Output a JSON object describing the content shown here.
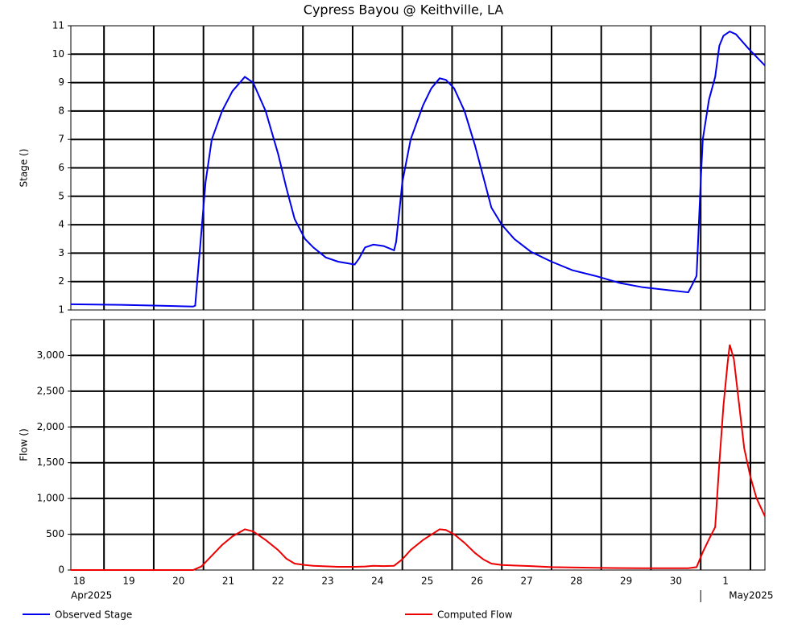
{
  "chart_data": [
    {
      "type": "line",
      "title": "Cypress Bayou @ Keithville, LA",
      "ylabel": "Stage ()",
      "x": [
        "2025-04-18T08:00",
        "2025-04-19T08:00",
        "2025-04-20T04:00",
        "2025-04-20T19:00",
        "2025-04-20T20:00",
        "2025-04-21T01:00",
        "2025-04-21T04:00",
        "2025-04-21T09:00",
        "2025-04-21T14:00",
        "2025-04-21T20:00",
        "2025-04-22T00:00",
        "2025-04-22T06:00",
        "2025-04-22T12:00",
        "2025-04-22T16:00",
        "2025-04-22T20:00",
        "2025-04-23T01:00",
        "2025-04-23T05:00",
        "2025-04-23T11:00",
        "2025-04-23T17:00",
        "2025-04-24T01:00",
        "2025-04-24T03:00",
        "2025-04-24T06:00",
        "2025-04-24T10:00",
        "2025-04-24T15:00",
        "2025-04-24T20:00",
        "2025-04-24T21:00",
        "2025-04-25T00:00",
        "2025-04-25T04:00",
        "2025-04-25T10:00",
        "2025-04-25T14:00",
        "2025-04-25T18:00",
        "2025-04-25T21:00",
        "2025-04-26T01:00",
        "2025-04-26T06:00",
        "2025-04-26T11:00",
        "2025-04-26T15:00",
        "2025-04-26T19:00",
        "2025-04-27T00:00",
        "2025-04-27T06:00",
        "2025-04-27T14:00",
        "2025-04-28T00:00",
        "2025-04-28T10:00",
        "2025-04-28T21:00",
        "2025-04-29T09:00",
        "2025-04-29T20:00",
        "2025-04-30T08:00",
        "2025-04-30T18:00",
        "2025-04-30T20:00",
        "2025-04-30T22:00",
        "2025-05-01T00:00",
        "2025-05-01T01:00",
        "2025-05-01T04:00",
        "2025-05-01T07:00",
        "2025-05-01T09:00",
        "2025-05-01T11:00",
        "2025-05-01T14:00",
        "2025-05-01T17:00",
        "2025-05-01T23:00",
        "2025-05-02T07:00"
      ],
      "series": [
        {
          "name": "Observed Stage",
          "color": "#0000ee",
          "values": [
            1.2,
            1.18,
            1.15,
            1.12,
            1.15,
            5.5,
            7.0,
            8.0,
            8.7,
            9.2,
            9.0,
            8.0,
            6.5,
            5.3,
            4.2,
            3.5,
            3.2,
            2.85,
            2.7,
            2.6,
            2.8,
            3.2,
            3.3,
            3.25,
            3.1,
            3.4,
            5.5,
            7.0,
            8.2,
            8.8,
            9.15,
            9.1,
            8.8,
            8.0,
            6.8,
            5.7,
            4.6,
            4.0,
            3.5,
            3.05,
            2.7,
            2.4,
            2.2,
            1.95,
            1.8,
            1.7,
            1.62,
            1.9,
            2.2,
            5.5,
            7.0,
            8.4,
            9.2,
            10.3,
            10.65,
            10.8,
            10.7,
            10.2,
            9.6
          ]
        }
      ],
      "xlim": [
        "2025-04-18T08:00",
        "2025-05-02T07:00"
      ],
      "ylim": [
        1,
        11
      ],
      "yticks": [
        1,
        2,
        3,
        4,
        5,
        6,
        7,
        8,
        9,
        10,
        11
      ],
      "grid": true
    },
    {
      "type": "line",
      "ylabel": "Flow ()",
      "x": [
        "2025-04-18T08:00",
        "2025-04-20T19:00",
        "2025-04-20T23:00",
        "2025-04-21T04:00",
        "2025-04-21T09:00",
        "2025-04-21T14:00",
        "2025-04-21T20:00",
        "2025-04-22T00:00",
        "2025-04-22T06:00",
        "2025-04-22T12:00",
        "2025-04-22T16:00",
        "2025-04-22T20:00",
        "2025-04-23T01:00",
        "2025-04-23T05:00",
        "2025-04-23T17:00",
        "2025-04-24T01:00",
        "2025-04-24T06:00",
        "2025-04-24T10:00",
        "2025-04-24T15:00",
        "2025-04-24T20:00",
        "2025-04-25T00:00",
        "2025-04-25T04:00",
        "2025-04-25T10:00",
        "2025-04-25T18:00",
        "2025-04-25T21:00",
        "2025-04-26T01:00",
        "2025-04-26T06:00",
        "2025-04-26T11:00",
        "2025-04-26T15:00",
        "2025-04-26T19:00",
        "2025-04-27T00:00",
        "2025-04-27T14:00",
        "2025-04-28T00:00",
        "2025-04-28T21:00",
        "2025-04-29T20:00",
        "2025-04-30T18:00",
        "2025-04-30T22:00",
        "2025-05-01T01:00",
        "2025-05-01T04:00",
        "2025-05-01T07:00",
        "2025-05-01T09:00",
        "2025-05-01T11:00",
        "2025-05-01T13:00",
        "2025-05-01T14:00",
        "2025-05-01T16:00",
        "2025-05-01T17:00",
        "2025-05-01T19:00",
        "2025-05-01T21:00",
        "2025-05-02T00:00",
        "2025-05-02T03:00",
        "2025-05-02T07:00"
      ],
      "series": [
        {
          "name": "Computed Flow",
          "color": "#ee0000",
          "values": [
            0,
            0,
            50,
            200,
            350,
            470,
            570,
            540,
            420,
            280,
            160,
            90,
            70,
            60,
            45,
            45,
            50,
            60,
            55,
            60,
            150,
            280,
            420,
            570,
            560,
            500,
            380,
            240,
            150,
            90,
            70,
            55,
            40,
            30,
            25,
            25,
            40,
            250,
            430,
            600,
            1500,
            2300,
            2900,
            3150,
            2950,
            2700,
            2200,
            1700,
            1300,
            1000,
            750
          ]
        }
      ],
      "xlim": [
        "2025-04-18T08:00",
        "2025-05-02T07:00"
      ],
      "ylim": [
        0,
        3500
      ],
      "yticks": [
        0,
        500,
        {
          "value": 1000,
          "label": "1,000"
        },
        {
          "value": 1500,
          "label": "1,500"
        },
        {
          "value": 2000,
          "label": "2,000"
        },
        {
          "value": 2500,
          "label": "2,500"
        },
        {
          "value": 3000,
          "label": "3,000"
        }
      ],
      "xticks": [
        {
          "value": "2025-04-18T00:00",
          "label": "18"
        },
        {
          "value": "2025-04-19T00:00",
          "label": "19"
        },
        {
          "value": "2025-04-20T00:00",
          "label": "20"
        },
        {
          "value": "2025-04-21T00:00",
          "label": "21"
        },
        {
          "value": "2025-04-22T00:00",
          "label": "22"
        },
        {
          "value": "2025-04-23T00:00",
          "label": "23"
        },
        {
          "value": "2025-04-24T00:00",
          "label": "24"
        },
        {
          "value": "2025-04-25T00:00",
          "label": "25"
        },
        {
          "value": "2025-04-26T00:00",
          "label": "26"
        },
        {
          "value": "2025-04-27T00:00",
          "label": "27"
        },
        {
          "value": "2025-04-28T00:00",
          "label": "28"
        },
        {
          "value": "2025-04-29T00:00",
          "label": "29"
        },
        {
          "value": "2025-04-30T00:00",
          "label": "30"
        },
        {
          "value": "2025-05-01T00:00",
          "label": "1"
        },
        {
          "value": "2025-05-02T00:00",
          "label": null
        }
      ],
      "month_labels": [
        {
          "value": "2025-04-18T00:00",
          "label": "Apr2025"
        },
        {
          "value": "2025-05-01T00:00",
          "label": "May2025"
        }
      ],
      "grid": true
    }
  ]
}
